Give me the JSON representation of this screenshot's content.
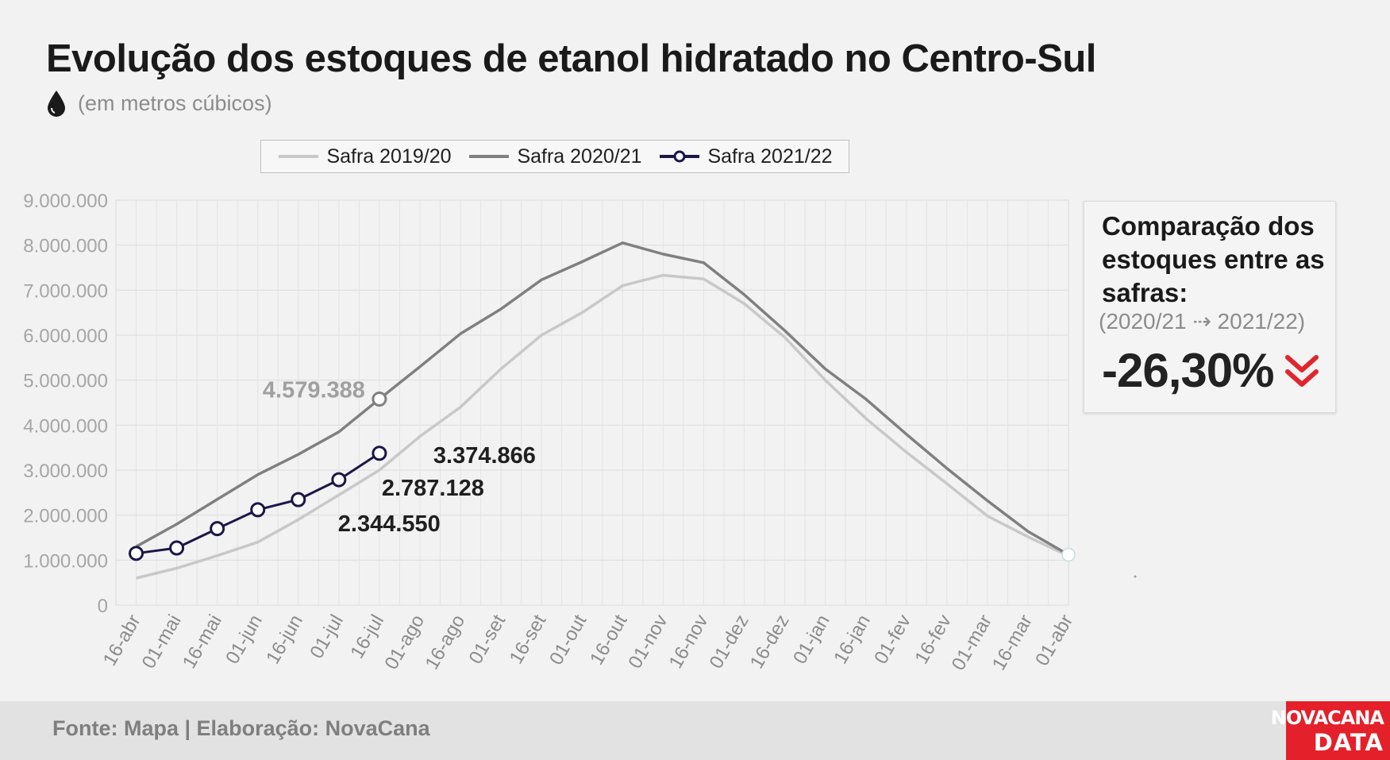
{
  "header": {
    "title": "Evolução dos estoques de etanol hidratado no Centro-Sul",
    "subtitle": "(em metros cúbicos)",
    "icon": "drop-icon"
  },
  "colors": {
    "series_2019": "#c8c8c8",
    "series_2020": "#808080",
    "series_2021": "#1b1648",
    "accent_red": "#e0262c",
    "logo_bg": "#e4202a"
  },
  "legend": [
    {
      "label": "Safra 2019/20",
      "color": "#c8c8c8",
      "marker": false
    },
    {
      "label": "Safra 2020/21",
      "color": "#808080",
      "marker": false
    },
    {
      "label": "Safra 2021/22",
      "color": "#1b1648",
      "marker": true
    }
  ],
  "chart_data": {
    "type": "line",
    "title": "Evolução dos estoques de etanol hidratado no Centro-Sul",
    "ylabel": "(em metros cúbicos)",
    "xlabel": "",
    "ylim": [
      0,
      9000000
    ],
    "y_ticks": [
      0,
      1000000,
      2000000,
      3000000,
      4000000,
      5000000,
      6000000,
      7000000,
      8000000,
      9000000
    ],
    "y_tick_labels": [
      "0",
      "1.000.000",
      "2.000.000",
      "3.000.000",
      "4.000.000",
      "5.000.000",
      "6.000.000",
      "7.000.000",
      "8.000.000",
      "9.000.000"
    ],
    "grid": true,
    "legend_position": "top",
    "categories": [
      "16-abr",
      "01-mai",
      "16-mai",
      "01-jun",
      "16-jun",
      "01-jul",
      "16-jul",
      "01-ago",
      "16-ago",
      "01-set",
      "16-set",
      "01-out",
      "16-out",
      "01-nov",
      "16-nov",
      "01-dez",
      "16-dez",
      "01-jan",
      "16-jan",
      "01-fev",
      "16-fev",
      "01-mar",
      "16-mar",
      "01-abr"
    ],
    "series": [
      {
        "name": "Safra 2019/20",
        "values": [
          600000,
          820000,
          1100000,
          1400000,
          1900000,
          2450000,
          3000000,
          3750000,
          4400000,
          5250000,
          6000000,
          6500000,
          7100000,
          7330000,
          7250000,
          6700000,
          5950000,
          5000000,
          4150000,
          3400000,
          2700000,
          1980000,
          1520000,
          1090000
        ]
      },
      {
        "name": "Safra 2020/21",
        "values": [
          1300000,
          1800000,
          2350000,
          2900000,
          3350000,
          3850000,
          4579388,
          5300000,
          6030000,
          6580000,
          7230000,
          7630000,
          8050000,
          7800000,
          7610000,
          6900000,
          6100000,
          5250000,
          4580000,
          3800000,
          3040000,
          2320000,
          1640000,
          1120000
        ]
      },
      {
        "name": "Safra 2021/22",
        "values": [
          1150000,
          1270000,
          1700000,
          2120000,
          2344550,
          2787128,
          3374866,
          null,
          null,
          null,
          null,
          null,
          null,
          null,
          null,
          null,
          null,
          null,
          null,
          null,
          null,
          null,
          null,
          1120000
        ]
      }
    ],
    "annotations": [
      {
        "text": "4.579.388",
        "series": "Safra 2020/21",
        "category": "16-jul"
      },
      {
        "text": "3.374.866",
        "series": "Safra 2021/22",
        "category": "16-jul"
      },
      {
        "text": "2.787.128",
        "series": "Safra 2021/22",
        "category": "01-jul"
      },
      {
        "text": "2.344.550",
        "series": "Safra 2021/22",
        "category": "16-jun"
      }
    ]
  },
  "comparison_card": {
    "title": "Comparação dos estoques entre as safras:",
    "subtitle": "(2020/21 ⇢ 2021/22)",
    "value": "-26,30%",
    "icon": "double-chevron-down-icon"
  },
  "footer": {
    "source": "Fonte: Mapa | Elaboração: NovaCana"
  },
  "logo": {
    "line1": "NOVACANA",
    "line2": "DATA"
  }
}
